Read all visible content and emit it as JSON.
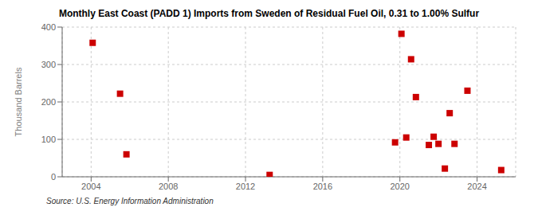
{
  "chart_data": {
    "type": "scatter",
    "title": "Monthly East Coast (PADD 1) Imports from Sweden of Residual Fuel Oil, 0.31 to 1.00% Sulfur",
    "ylabel": "Thousand Barrels",
    "annotations": [
      "Source: U.S. Energy Information Administration"
    ],
    "x": [
      2004.08,
      2005.5,
      2005.83,
      2013.25,
      2019.75,
      2020.08,
      2020.33,
      2020.58,
      2020.83,
      2021.5,
      2021.75,
      2022.0,
      2022.33,
      2022.58,
      2022.83,
      2023.5,
      2025.25
    ],
    "values": [
      358,
      222,
      60,
      5,
      92,
      382,
      105,
      314,
      213,
      85,
      107,
      88,
      22,
      170,
      88,
      230,
      18
    ],
    "color": "#cc0000",
    "marker": "square",
    "xlim": [
      2002.5,
      2026.0
    ],
    "ylim": [
      0,
      400
    ],
    "xticks": [
      2004,
      2008,
      2012,
      2016,
      2020,
      2024
    ],
    "yticks": [
      0,
      100,
      200,
      300,
      400
    ],
    "grid": true
  }
}
